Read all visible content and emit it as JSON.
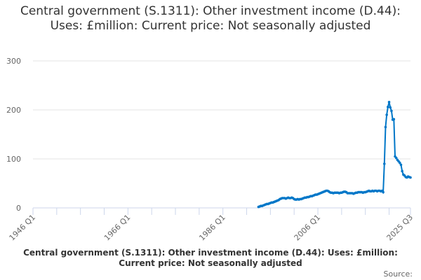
{
  "chart_data": {
    "type": "line",
    "title": "Central government (S.1311): Other investment income (D.44): Uses: £million: Current price: Not seasonally adjusted",
    "xlabel": "",
    "ylabel": "",
    "ylim": [
      0,
      300
    ],
    "yticks": [
      "0",
      "100",
      "200",
      "300"
    ],
    "xlim": [
      "1946 Q1",
      "2025 Q3"
    ],
    "xtick_labels": [
      "1946 Q1",
      "1966 Q1",
      "1986 Q1",
      "2006 Q1",
      "2025 Q3"
    ],
    "grid": true,
    "color": "#0077c8",
    "series": [
      {
        "name": "Central government (S.1311): Other investment income (D.44): Uses: £million: Current price: Not seasonally adjusted",
        "start": "1993 Q3",
        "values": [
          2,
          3,
          4,
          4,
          5,
          6,
          7,
          8,
          8,
          9,
          10,
          11,
          11,
          12,
          13,
          14,
          15,
          16,
          18,
          19,
          20,
          20,
          20,
          19,
          20,
          21,
          20,
          20,
          21,
          20,
          18,
          17,
          17,
          18,
          17,
          18,
          18,
          19,
          20,
          21,
          21,
          22,
          22,
          23,
          24,
          24,
          25,
          26,
          27,
          27,
          28,
          29,
          30,
          31,
          32,
          33,
          34,
          35,
          35,
          34,
          32,
          31,
          31,
          30,
          31,
          31,
          31,
          31,
          30,
          31,
          31,
          32,
          33,
          33,
          32,
          30,
          30,
          30,
          30,
          30,
          29,
          30,
          31,
          31,
          32,
          32,
          32,
          32,
          31,
          32,
          32,
          33,
          34,
          35,
          34,
          34,
          35,
          34,
          35,
          35,
          34,
          35,
          35,
          34,
          35,
          32,
          90,
          165,
          190,
          206,
          216,
          205,
          198,
          180,
          181,
          105,
          102,
          98,
          95,
          92,
          88,
          75,
          68,
          66,
          63,
          62,
          64,
          63,
          62
        ]
      }
    ]
  },
  "footer": {
    "caption": "Central government (S.1311): Other investment income (D.44): Uses: £million: Current price: Not seasonally adjusted",
    "source": "Source:"
  }
}
